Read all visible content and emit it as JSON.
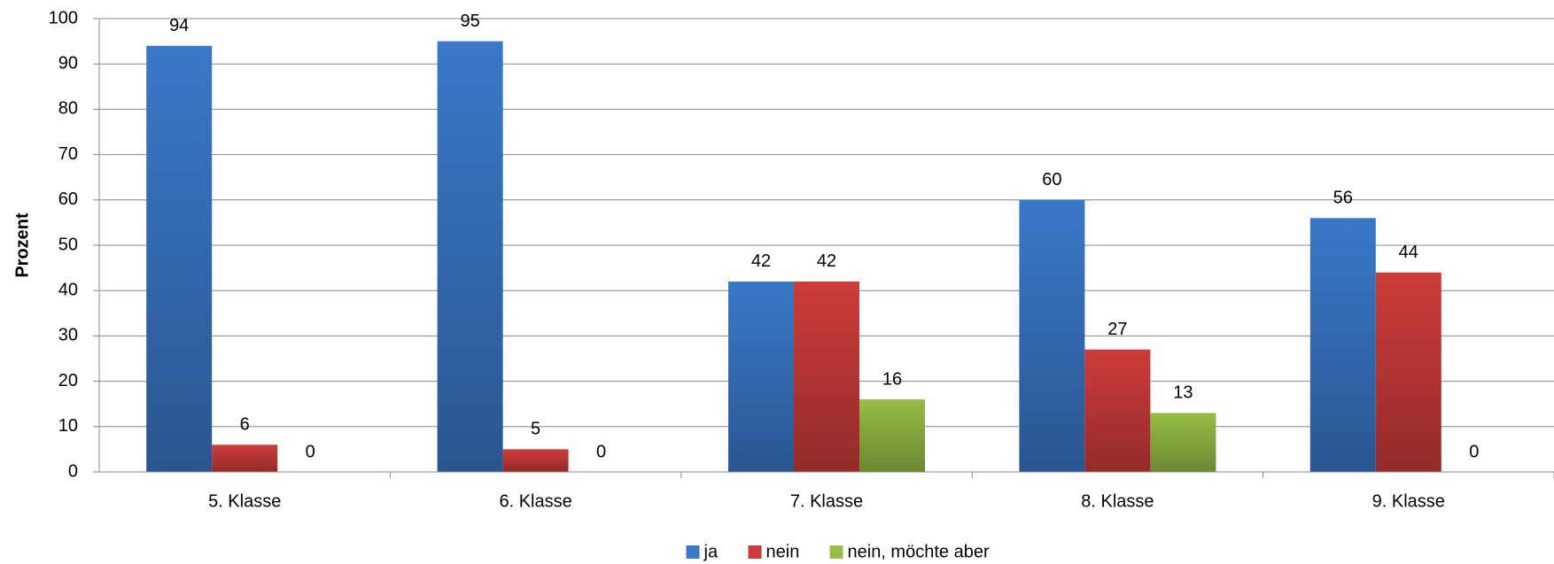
{
  "chart_data": {
    "type": "bar",
    "y_label": "Prozent",
    "categories": [
      "5. Klasse",
      "6. Klasse",
      "7. Klasse",
      "8. Klasse",
      "9. Klasse"
    ],
    "series": [
      {
        "name": "ja",
        "color": "#3a78c8",
        "values": [
          94,
          95,
          42,
          60,
          56
        ]
      },
      {
        "name": "nein",
        "color": "#cc3c3a",
        "values": [
          6,
          5,
          42,
          27,
          44
        ]
      },
      {
        "name": "nein, möchte aber",
        "color": "#96bd45",
        "values": [
          0,
          0,
          16,
          13,
          0
        ]
      }
    ],
    "ylim": [
      0,
      100
    ],
    "yticks": [
      0,
      10,
      20,
      30,
      40,
      50,
      60,
      70,
      80,
      90,
      100
    ],
    "grid": true,
    "legend": "bottom"
  }
}
